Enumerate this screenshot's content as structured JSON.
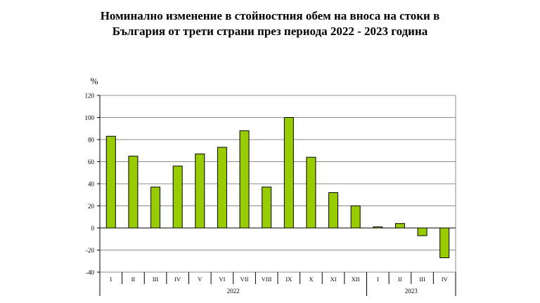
{
  "chart_data": {
    "type": "bar",
    "title_line1": "Номинално изменение в стойностния обем на вноса на стоки в",
    "title_line2": "България от трети страни през периода 2022 - 2023 година",
    "ylabel": "%",
    "ylim": [
      -40,
      120
    ],
    "yticks": [
      -40,
      -20,
      0,
      20,
      40,
      60,
      80,
      100,
      120
    ],
    "grid": true,
    "legend": "none",
    "bar_color": "#99CC00",
    "bar_border_color": "#000000",
    "categories": [
      "I",
      "II",
      "III",
      "IV",
      "V",
      "VI",
      "VII",
      "VIII",
      "IX",
      "X",
      "XI",
      "XII",
      "I",
      "II",
      "III",
      "IV"
    ],
    "values": [
      83,
      65,
      37,
      56,
      67,
      73,
      88,
      37,
      100,
      64,
      32,
      20,
      1,
      4,
      -7,
      -27
    ],
    "groups": [
      {
        "label": "2022",
        "count": 12
      },
      {
        "label": "2023",
        "count": 4
      }
    ]
  }
}
